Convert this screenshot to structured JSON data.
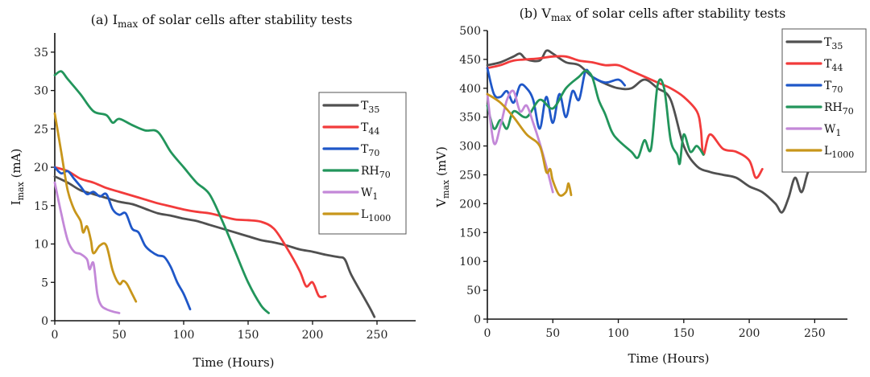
{
  "chart_data": [
    {
      "type": "line",
      "title": "(a) I",
      "title_sub": "max",
      "title_rest": " of solar cells after stability tests",
      "xlabel": "Time (Hours)",
      "ylabel": "I",
      "ylabel_sub": "max",
      "ylabel_rest": " (mA)",
      "xlim": [
        0,
        280
      ],
      "ylim": [
        0,
        37.5
      ],
      "xticks": [
        0,
        50,
        100,
        150,
        200,
        250
      ],
      "yticks": [
        0,
        5,
        10,
        15,
        20,
        25,
        30,
        35
      ],
      "legend_position": "right",
      "series": [
        {
          "name": "T",
          "sub": "35",
          "color": "#505050",
          "points": [
            [
              0,
              18.8
            ],
            [
              10,
              18
            ],
            [
              20,
              17
            ],
            [
              30,
              16.5
            ],
            [
              40,
              16
            ],
            [
              50,
              15.5
            ],
            [
              60,
              15.2
            ],
            [
              70,
              14.6
            ],
            [
              80,
              14
            ],
            [
              90,
              13.7
            ],
            [
              100,
              13.3
            ],
            [
              110,
              13
            ],
            [
              120,
              12.5
            ],
            [
              130,
              12
            ],
            [
              140,
              11.5
            ],
            [
              150,
              11
            ],
            [
              160,
              10.5
            ],
            [
              170,
              10.2
            ],
            [
              180,
              9.8
            ],
            [
              190,
              9.3
            ],
            [
              200,
              9
            ],
            [
              210,
              8.6
            ],
            [
              220,
              8.3
            ],
            [
              225,
              8
            ],
            [
              230,
              6
            ],
            [
              240,
              3
            ],
            [
              245,
              1.5
            ],
            [
              248,
              0.5
            ]
          ]
        },
        {
          "name": "T",
          "sub": "44",
          "color": "#f23b3b",
          "points": [
            [
              0,
              20
            ],
            [
              10,
              19.5
            ],
            [
              20,
              18.5
            ],
            [
              30,
              18
            ],
            [
              40,
              17.3
            ],
            [
              50,
              16.8
            ],
            [
              60,
              16.3
            ],
            [
              70,
              15.8
            ],
            [
              80,
              15.3
            ],
            [
              90,
              14.9
            ],
            [
              100,
              14.5
            ],
            [
              110,
              14.2
            ],
            [
              120,
              14
            ],
            [
              130,
              13.6
            ],
            [
              140,
              13.2
            ],
            [
              150,
              13.1
            ],
            [
              160,
              12.9
            ],
            [
              170,
              12
            ],
            [
              180,
              9.5
            ],
            [
              190,
              6.5
            ],
            [
              195,
              4.5
            ],
            [
              200,
              5
            ],
            [
              205,
              3.2
            ],
            [
              210,
              3.2
            ]
          ]
        },
        {
          "name": "T",
          "sub": "70",
          "color": "#1f57c8",
          "points": [
            [
              0,
              20
            ],
            [
              5,
              19.2
            ],
            [
              10,
              19.5
            ],
            [
              15,
              18.5
            ],
            [
              20,
              17.5
            ],
            [
              25,
              16.5
            ],
            [
              30,
              16.8
            ],
            [
              35,
              16.2
            ],
            [
              40,
              16.5
            ],
            [
              45,
              14.5
            ],
            [
              50,
              13.8
            ],
            [
              55,
              14
            ],
            [
              60,
              12
            ],
            [
              65,
              11.5
            ],
            [
              70,
              9.8
            ],
            [
              75,
              9
            ],
            [
              80,
              8.5
            ],
            [
              85,
              8.3
            ],
            [
              90,
              7
            ],
            [
              95,
              5
            ],
            [
              100,
              3.5
            ],
            [
              105,
              1.5
            ]
          ]
        },
        {
          "name": "RH",
          "sub": "70",
          "color": "#22955b",
          "points": [
            [
              0,
              32
            ],
            [
              5,
              32.5
            ],
            [
              10,
              31.5
            ],
            [
              20,
              29.5
            ],
            [
              30,
              27.3
            ],
            [
              40,
              26.8
            ],
            [
              45,
              25.8
            ],
            [
              50,
              26.3
            ],
            [
              60,
              25.5
            ],
            [
              70,
              24.8
            ],
            [
              80,
              24.6
            ],
            [
              90,
              22
            ],
            [
              100,
              20
            ],
            [
              110,
              18
            ],
            [
              120,
              16.5
            ],
            [
              130,
              13
            ],
            [
              140,
              9
            ],
            [
              150,
              5
            ],
            [
              160,
              2
            ],
            [
              166,
              1
            ]
          ]
        },
        {
          "name": "W",
          "sub": "1",
          "color": "#c388d8",
          "points": [
            [
              0,
              18
            ],
            [
              5,
              14
            ],
            [
              10,
              10.5
            ],
            [
              15,
              9
            ],
            [
              20,
              8.7
            ],
            [
              25,
              8
            ],
            [
              27,
              6.7
            ],
            [
              30,
              7.5
            ],
            [
              33,
              3.5
            ],
            [
              36,
              2
            ],
            [
              40,
              1.5
            ],
            [
              45,
              1.2
            ],
            [
              50,
              1
            ]
          ]
        },
        {
          "name": "L",
          "sub": "1000",
          "color": "#c8961b",
          "points": [
            [
              0,
              27
            ],
            [
              5,
              22
            ],
            [
              10,
              17
            ],
            [
              15,
              14.5
            ],
            [
              20,
              13
            ],
            [
              22,
              11.5
            ],
            [
              25,
              12.3
            ],
            [
              28,
              10.5
            ],
            [
              30,
              8.8
            ],
            [
              35,
              9.8
            ],
            [
              40,
              9.8
            ],
            [
              45,
              6.5
            ],
            [
              50,
              4.8
            ],
            [
              53,
              5.2
            ],
            [
              56,
              4.8
            ],
            [
              60,
              3.5
            ],
            [
              63,
              2.5
            ]
          ]
        }
      ]
    },
    {
      "type": "line",
      "title": "(b) V",
      "title_sub": "max",
      "title_rest": " of solar cells after stability tests",
      "xlabel": "Time (Hours)",
      "ylabel": "V",
      "ylabel_sub": "max",
      "ylabel_rest": " (mV)",
      "xlim": [
        0,
        275
      ],
      "ylim": [
        0,
        500
      ],
      "xticks": [
        0,
        50,
        100,
        150,
        200,
        250
      ],
      "yticks": [
        0,
        50,
        100,
        150,
        200,
        250,
        300,
        350,
        400,
        450,
        500
      ],
      "legend_position": "top-right",
      "series": [
        {
          "name": "T",
          "sub": "35",
          "color": "#505050",
          "points": [
            [
              0,
              440
            ],
            [
              10,
              445
            ],
            [
              20,
              455
            ],
            [
              25,
              460
            ],
            [
              30,
              450
            ],
            [
              40,
              448
            ],
            [
              45,
              465
            ],
            [
              50,
              460
            ],
            [
              60,
              445
            ],
            [
              70,
              440
            ],
            [
              80,
              420
            ],
            [
              90,
              408
            ],
            [
              100,
              400
            ],
            [
              110,
              400
            ],
            [
              120,
              415
            ],
            [
              130,
              400
            ],
            [
              140,
              380
            ],
            [
              150,
              300
            ],
            [
              160,
              265
            ],
            [
              170,
              255
            ],
            [
              180,
              250
            ],
            [
              190,
              245
            ],
            [
              200,
              230
            ],
            [
              210,
              220
            ],
            [
              220,
              200
            ],
            [
              225,
              185
            ],
            [
              230,
              210
            ],
            [
              235,
              245
            ],
            [
              240,
              220
            ],
            [
              245,
              255
            ],
            [
              250,
              260
            ]
          ]
        },
        {
          "name": "T",
          "sub": "44",
          "color": "#f23b3b",
          "points": [
            [
              0,
              435
            ],
            [
              10,
              440
            ],
            [
              20,
              448
            ],
            [
              30,
              450
            ],
            [
              40,
              452
            ],
            [
              50,
              455
            ],
            [
              60,
              455
            ],
            [
              70,
              448
            ],
            [
              80,
              445
            ],
            [
              90,
              440
            ],
            [
              100,
              440
            ],
            [
              110,
              430
            ],
            [
              120,
              420
            ],
            [
              130,
              410
            ],
            [
              140,
              400
            ],
            [
              150,
              385
            ],
            [
              160,
              360
            ],
            [
              163,
              330
            ],
            [
              165,
              285
            ],
            [
              170,
              320
            ],
            [
              180,
              295
            ],
            [
              190,
              290
            ],
            [
              200,
              275
            ],
            [
              205,
              245
            ],
            [
              210,
              260
            ]
          ]
        },
        {
          "name": "T",
          "sub": "70",
          "color": "#1f57c8",
          "points": [
            [
              0,
              435
            ],
            [
              5,
              390
            ],
            [
              10,
              385
            ],
            [
              15,
              395
            ],
            [
              20,
              375
            ],
            [
              25,
              405
            ],
            [
              30,
              400
            ],
            [
              35,
              380
            ],
            [
              40,
              330
            ],
            [
              45,
              385
            ],
            [
              50,
              340
            ],
            [
              55,
              390
            ],
            [
              60,
              350
            ],
            [
              65,
              395
            ],
            [
              70,
              380
            ],
            [
              75,
              430
            ],
            [
              80,
              420
            ],
            [
              90,
              410
            ],
            [
              100,
              415
            ],
            [
              105,
              405
            ]
          ]
        },
        {
          "name": "RH",
          "sub": "70",
          "color": "#22955b",
          "points": [
            [
              0,
              370
            ],
            [
              5,
              330
            ],
            [
              10,
              345
            ],
            [
              15,
              330
            ],
            [
              20,
              360
            ],
            [
              30,
              350
            ],
            [
              40,
              380
            ],
            [
              50,
              365
            ],
            [
              60,
              400
            ],
            [
              70,
              420
            ],
            [
              75,
              430
            ],
            [
              80,
              420
            ],
            [
              85,
              380
            ],
            [
              90,
              355
            ],
            [
              95,
              325
            ],
            [
              100,
              310
            ],
            [
              110,
              290
            ],
            [
              115,
              280
            ],
            [
              120,
              310
            ],
            [
              125,
              295
            ],
            [
              130,
              405
            ],
            [
              135,
              400
            ],
            [
              140,
              310
            ],
            [
              145,
              285
            ],
            [
              147,
              270
            ],
            [
              150,
              320
            ],
            [
              155,
              290
            ],
            [
              160,
              300
            ],
            [
              165,
              285
            ]
          ]
        },
        {
          "name": "W",
          "sub": "1",
          "color": "#c388d8",
          "points": [
            [
              0,
              390
            ],
            [
              5,
              305
            ],
            [
              10,
              335
            ],
            [
              15,
              380
            ],
            [
              20,
              395
            ],
            [
              25,
              360
            ],
            [
              30,
              370
            ],
            [
              35,
              340
            ],
            [
              40,
              305
            ],
            [
              45,
              265
            ],
            [
              50,
              220
            ]
          ]
        },
        {
          "name": "L",
          "sub": "1000",
          "color": "#c8961b",
          "points": [
            [
              0,
              390
            ],
            [
              10,
              375
            ],
            [
              20,
              350
            ],
            [
              30,
              320
            ],
            [
              40,
              300
            ],
            [
              45,
              255
            ],
            [
              48,
              260
            ],
            [
              50,
              240
            ],
            [
              55,
              215
            ],
            [
              60,
              220
            ],
            [
              62,
              235
            ],
            [
              64,
              215
            ]
          ]
        }
      ]
    }
  ]
}
